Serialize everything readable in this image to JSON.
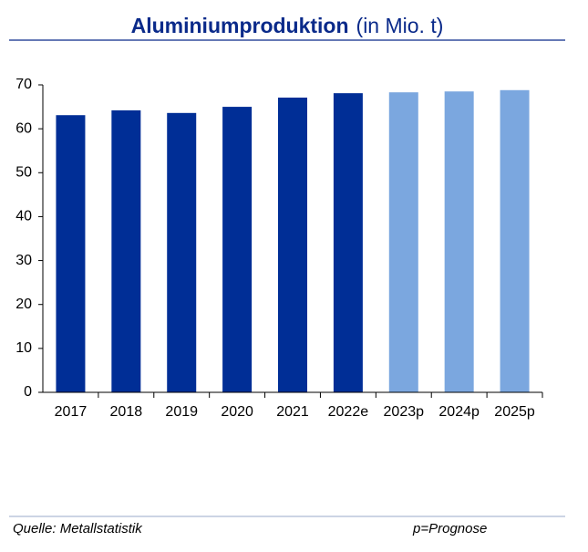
{
  "chart_data": {
    "type": "bar",
    "title": "Aluminiumproduktion",
    "subtitle": "(in Mio. t)",
    "categories": [
      "2017",
      "2018",
      "2019",
      "2020",
      "2021",
      "2022e",
      "2023p",
      "2024p",
      "2025p"
    ],
    "values": [
      63.1,
      64.2,
      63.6,
      65.0,
      67.1,
      68.1,
      68.3,
      68.5,
      68.8
    ],
    "colors": [
      "#002e96",
      "#002e96",
      "#002e96",
      "#002e96",
      "#002e96",
      "#002e96",
      "#7ba7df",
      "#7ba7df",
      "#7ba7df"
    ],
    "ylim": [
      0,
      70
    ],
    "yticks": [
      0,
      10,
      20,
      30,
      40,
      50,
      60,
      70
    ],
    "grid": false,
    "source": "Quelle: Metallstatistik",
    "note": "p=Prognose"
  }
}
